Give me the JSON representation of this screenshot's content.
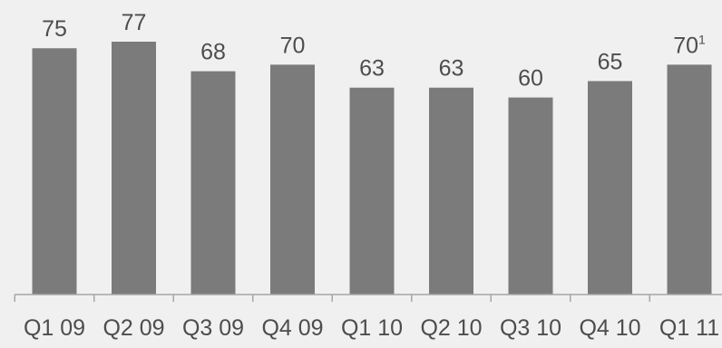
{
  "colors": {
    "background": "#f0f0f0",
    "bar": "#7b7b7b",
    "text": "#4d4d4d",
    "axis": "#a6a6a6"
  },
  "chart_data": {
    "type": "bar",
    "title": "",
    "xlabel": "",
    "ylabel": "",
    "categories": [
      "Q1 09",
      "Q2 09",
      "Q3 09",
      "Q4 09",
      "Q1 10",
      "Q2 10",
      "Q3 10",
      "Q4 10",
      "Q1 11"
    ],
    "values": [
      75,
      77,
      68,
      70,
      63,
      63,
      60,
      65,
      70
    ],
    "value_labels": [
      "75",
      "77",
      "68",
      "70",
      "63",
      "63",
      "60",
      "65",
      "70"
    ],
    "value_footnotes": [
      "",
      "",
      "",
      "",
      "",
      "",
      "",
      "",
      "1"
    ],
    "ylim": [
      0,
      77
    ],
    "grid": false,
    "legend": "none"
  }
}
